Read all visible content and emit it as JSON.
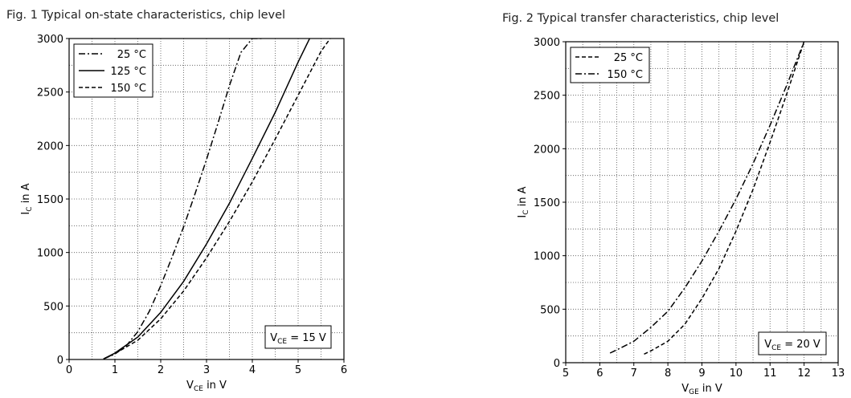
{
  "chart_data": [
    {
      "type": "line",
      "title": "Fig. 1  Typical on-state characteristics, chip level",
      "xlabel_main": "V",
      "xlabel_sub": "CE",
      "xlabel_tail": " in V",
      "ylabel_main": "I",
      "ylabel_sub": "C",
      "ylabel_tail": " in A",
      "xlim": [
        0,
        6
      ],
      "ylim": [
        0,
        3000
      ],
      "xticks": [
        0,
        1,
        2,
        3,
        4,
        5,
        6
      ],
      "yticks": [
        0,
        500,
        1000,
        1500,
        2000,
        2500,
        3000
      ],
      "grid": true,
      "legend_position": "top-left",
      "annotation_main": "V",
      "annotation_sub": "CE",
      "annotation_tail": " = 15 V",
      "series": [
        {
          "name": "25 °C",
          "dash": "dashdot",
          "x": [
            0.75,
            1.0,
            1.25,
            1.5,
            1.75,
            2.0,
            2.25,
            2.5,
            2.75,
            3.0,
            3.25,
            3.5,
            3.75,
            4.0,
            4.2
          ],
          "y": [
            5,
            50,
            130,
            260,
            450,
            690,
            960,
            1240,
            1550,
            1870,
            2210,
            2560,
            2870,
            3000,
            3000
          ]
        },
        {
          "name": "125 °C",
          "dash": "solid",
          "x": [
            0.75,
            1.0,
            1.5,
            2.0,
            2.5,
            3.0,
            3.5,
            4.0,
            4.5,
            5.0,
            5.25
          ],
          "y": [
            5,
            60,
            210,
            440,
            730,
            1080,
            1460,
            1880,
            2310,
            2780,
            3000
          ]
        },
        {
          "name": "150 °C",
          "dash": "dashed",
          "x": [
            0.75,
            1.0,
            1.5,
            2.0,
            2.5,
            3.0,
            3.5,
            4.0,
            4.5,
            5.0,
            5.5,
            5.7
          ],
          "y": [
            5,
            55,
            180,
            380,
            640,
            950,
            1290,
            1660,
            2060,
            2470,
            2880,
            3000
          ]
        }
      ]
    },
    {
      "type": "line",
      "title": "Fig. 2  Typical transfer characteristics, chip level",
      "xlabel_main": "V",
      "xlabel_sub": "GE",
      "xlabel_tail": " in V",
      "ylabel_main": "I",
      "ylabel_sub": "C",
      "ylabel_tail": " in A",
      "xlim": [
        5,
        13
      ],
      "ylim": [
        0,
        3000
      ],
      "xticks": [
        5,
        6,
        7,
        8,
        9,
        10,
        11,
        12,
        13
      ],
      "yticks": [
        0,
        500,
        1000,
        1500,
        2000,
        2500,
        3000
      ],
      "grid": true,
      "legend_position": "top-left",
      "annotation_main": "V",
      "annotation_sub": "CE",
      "annotation_tail": " = 20 V",
      "series": [
        {
          "name": "25 °C",
          "dash": "dashed",
          "x": [
            7.3,
            7.5,
            8.0,
            8.5,
            9.0,
            9.5,
            10.0,
            10.5,
            11.0,
            11.5,
            12.0
          ],
          "y": [
            80,
            110,
            200,
            360,
            600,
            880,
            1230,
            1620,
            2060,
            2520,
            3000
          ]
        },
        {
          "name": "150 °C",
          "dash": "dashdot",
          "x": [
            6.3,
            6.5,
            7.0,
            7.5,
            8.0,
            8.5,
            9.0,
            9.5,
            10.0,
            10.5,
            11.0,
            11.5,
            12.0
          ],
          "y": [
            90,
            120,
            200,
            330,
            480,
            700,
            950,
            1230,
            1530,
            1860,
            2220,
            2600,
            3000
          ]
        }
      ]
    }
  ]
}
